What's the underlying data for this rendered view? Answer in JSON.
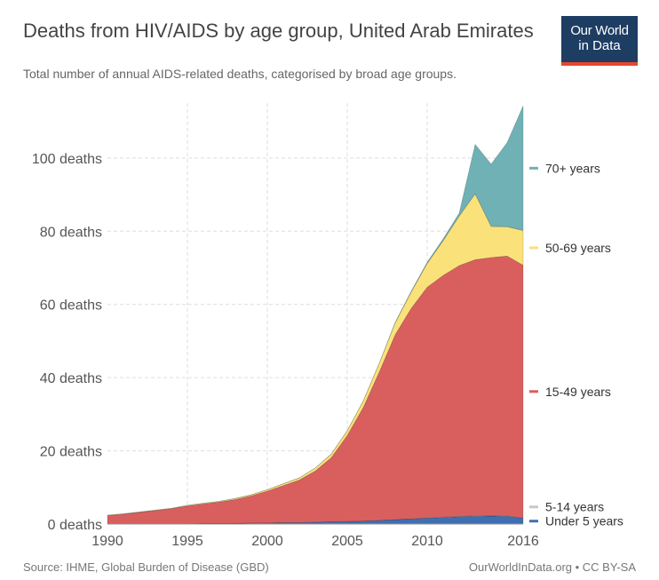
{
  "header": {
    "title": "Deaths from HIV/AIDS by age group, United Arab Emirates",
    "subtitle": "Total number of annual AIDS-related deaths, categorised by broad age groups.",
    "logo_line1": "Our World",
    "logo_line2": "in Data"
  },
  "footer": {
    "source": "Source: IHME, Global Burden of Disease (GBD)",
    "credit": "OurWorldInData.org • CC BY-SA"
  },
  "chart_data": {
    "type": "area",
    "stacked": true,
    "x": [
      1990,
      1991,
      1992,
      1993,
      1994,
      1995,
      1996,
      1997,
      1998,
      1999,
      2000,
      2001,
      2002,
      2003,
      2004,
      2005,
      2006,
      2007,
      2008,
      2009,
      2010,
      2011,
      2012,
      2013,
      2014,
      2015,
      2016
    ],
    "xticks": [
      1990,
      1995,
      2000,
      2005,
      2010,
      2016
    ],
    "xlim": [
      1990,
      2016
    ],
    "ylim": [
      0,
      115
    ],
    "yticks": [
      0,
      20,
      40,
      60,
      80,
      100
    ],
    "ytick_labels": [
      "0 deaths",
      "20 deaths",
      "40 deaths",
      "60 deaths",
      "80 deaths",
      "100 deaths"
    ],
    "grid": true,
    "legend_position": "right",
    "series": [
      {
        "name": "Under 5 years",
        "color": "#3f6fb3",
        "values": [
          0.1,
          0.1,
          0.1,
          0.1,
          0.1,
          0.1,
          0.2,
          0.2,
          0.2,
          0.3,
          0.3,
          0.4,
          0.4,
          0.5,
          0.6,
          0.7,
          0.8,
          1.0,
          1.2,
          1.4,
          1.6,
          1.8,
          2.0,
          2.1,
          2.2,
          2.1,
          1.6
        ]
      },
      {
        "name": "5-14 years",
        "color": "#c9c9c9",
        "values": [
          0,
          0,
          0,
          0,
          0,
          0,
          0,
          0,
          0,
          0,
          0,
          0,
          0,
          0,
          0,
          0,
          0,
          0,
          0,
          0,
          0.1,
          0.1,
          0.1,
          0.1,
          0.1,
          0.1,
          0.1
        ]
      },
      {
        "name": "15-49 years",
        "color": "#d95f5f",
        "values": [
          2.2,
          2.6,
          3.1,
          3.6,
          4.1,
          4.8,
          5.3,
          5.8,
          6.5,
          7.4,
          8.7,
          10.1,
          11.6,
          14.0,
          17.5,
          23.5,
          31.0,
          40.5,
          50.5,
          57.5,
          63.0,
          66.0,
          68.5,
          70.0,
          70.5,
          71.0,
          69.0
        ]
      },
      {
        "name": "50-69 years",
        "color": "#fbe17a",
        "values": [
          0.1,
          0.1,
          0.1,
          0.1,
          0.1,
          0.2,
          0.2,
          0.2,
          0.3,
          0.3,
          0.4,
          0.5,
          0.6,
          0.8,
          1.0,
          1.3,
          1.8,
          2.4,
          3.3,
          4.5,
          6.5,
          9.5,
          13.5,
          18.0,
          8.5,
          8.0,
          9.5
        ]
      },
      {
        "name": "70+ years",
        "color": "#6fb1b5",
        "values": [
          0,
          0,
          0,
          0,
          0,
          0,
          0,
          0,
          0,
          0,
          0,
          0,
          0,
          0,
          0,
          0,
          0,
          0,
          0.1,
          0.2,
          0.3,
          0.5,
          0.8,
          13.5,
          17.0,
          23.0,
          34.0
        ]
      }
    ]
  }
}
